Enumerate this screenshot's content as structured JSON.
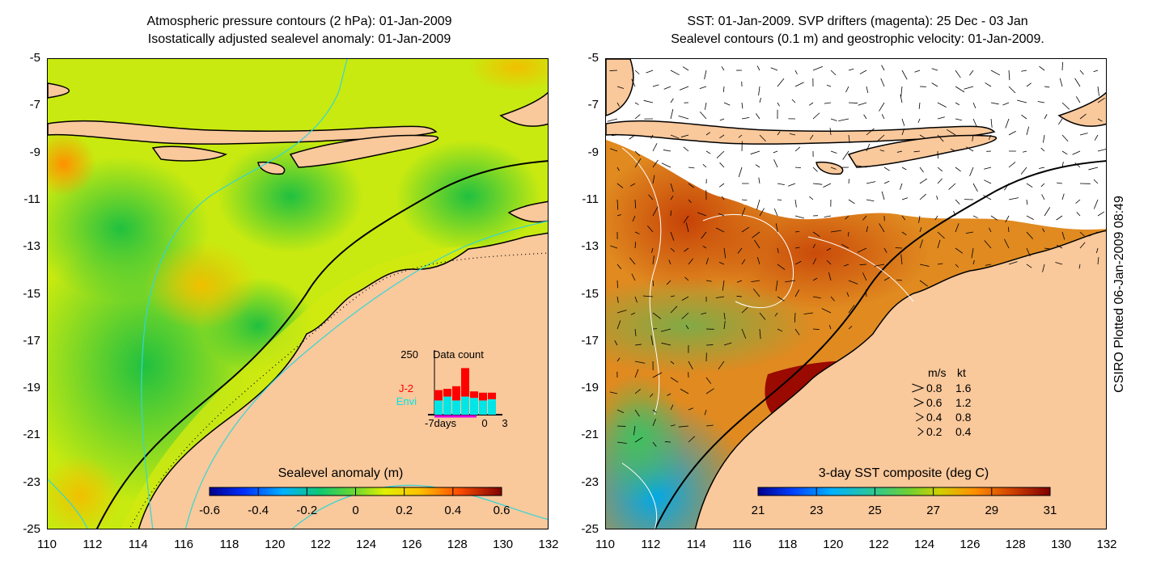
{
  "left_panel": {
    "title_line1": "Atmospheric pressure contours (2 hPa): 01-Jan-2009",
    "title_line2": "Isostatically adjusted sealevel anomaly: 01-Jan-2009",
    "colorbar": {
      "label": "Sealevel anomaly (m)",
      "ticks": [
        "-0.6",
        "-0.4",
        "-0.2",
        "0",
        "0.2",
        "0.4",
        "0.6"
      ],
      "range": [
        -0.6,
        0.6
      ]
    },
    "inset": {
      "ymax_label": "250",
      "title": "Data count",
      "legend": [
        {
          "label": "J-2",
          "color": "#ff0000"
        },
        {
          "label": "Envi",
          "color": "#00e5e5"
        }
      ],
      "x_labels": [
        "-7days",
        "0",
        "3"
      ],
      "bars": [
        {
          "j2": 40,
          "envi": 55
        },
        {
          "j2": 30,
          "envi": 70
        },
        {
          "j2": 55,
          "envi": 55
        },
        {
          "j2": 110,
          "envi": 70
        },
        {
          "j2": 25,
          "envi": 65
        },
        {
          "j2": 30,
          "envi": 55
        },
        {
          "j2": 25,
          "envi": 60
        }
      ]
    }
  },
  "right_panel": {
    "title_line1": "SST: 01-Jan-2009. SVP drifters (magenta): 25 Dec - 03 Jan",
    "title_line2": "Sealevel contours (0.1 m) and geostrophic velocity: 01-Jan-2009.",
    "colorbar": {
      "label": "3-day SST composite (deg C)",
      "ticks": [
        "21",
        "23",
        "25",
        "27",
        "29",
        "31"
      ],
      "range": [
        21,
        31
      ]
    },
    "velocity_key": {
      "header_ms": "m/s",
      "header_kt": "kt",
      "rows": [
        {
          "ms": "0.8",
          "kt": "1.6"
        },
        {
          "ms": "0.6",
          "kt": "1.2"
        },
        {
          "ms": "0.4",
          "kt": "0.8"
        },
        {
          "ms": "0.2",
          "kt": "0.4"
        }
      ]
    }
  },
  "axes": {
    "y_ticks": [
      "-5",
      "-7",
      "-9",
      "-11",
      "-13",
      "-15",
      "-17",
      "-19",
      "-21",
      "-23",
      "-25"
    ],
    "x_ticks": [
      "110",
      "112",
      "114",
      "116",
      "118",
      "120",
      "122",
      "124",
      "126",
      "128",
      "130",
      "132"
    ],
    "lon_range": [
      110,
      132
    ],
    "lat_range": [
      -25,
      -5
    ]
  },
  "stamp": "CSIRO Plotted 06-Jan-2009 08:49",
  "colors": {
    "land": "#f9c89b",
    "contour": "#33d6d6",
    "ssa_cmap": [
      "#00008f",
      "#0060ff",
      "#00c0ff",
      "#20d080",
      "#7fe030",
      "#e0f000",
      "#ffc000",
      "#ff6000",
      "#c00000",
      "#800000"
    ],
    "sst_cmap": [
      "#00008f",
      "#0040ff",
      "#00b0ff",
      "#30d0a0",
      "#60d040",
      "#c0d000",
      "#ffa000",
      "#e05000",
      "#a01000",
      "#800000"
    ]
  }
}
